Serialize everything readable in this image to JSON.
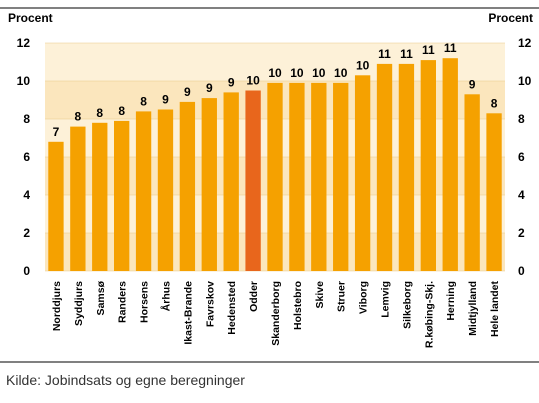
{
  "chart_data": {
    "type": "bar",
    "y_label_left": "Procent",
    "y_label_right": "Procent",
    "categories": [
      "Norddjurs",
      "Syddjurs",
      "Samsø",
      "Randers",
      "Horsens",
      "Århus",
      "Ikast-Brande",
      "Favrskov",
      "Hedensted",
      "Odder",
      "Skanderborg",
      "Holstebro",
      "Skive",
      "Struer",
      "Viborg",
      "Lemvig",
      "Silkeborg",
      "R.købing-Skj.",
      "Herning",
      "Midtjylland",
      "Hele landet"
    ],
    "values": [
      6.8,
      7.6,
      7.8,
      7.9,
      8.4,
      8.5,
      8.9,
      9.1,
      9.4,
      9.5,
      9.9,
      9.9,
      9.9,
      9.9,
      10.3,
      10.9,
      10.9,
      11.1,
      11.2,
      9.3,
      8.3
    ],
    "value_labels": [
      "7",
      "8",
      "8",
      "8",
      "8",
      "9",
      "9",
      "9",
      "9",
      "10",
      "10",
      "10",
      "10",
      "10",
      "10",
      "11",
      "11",
      "11",
      "11",
      "9",
      "8"
    ],
    "colors": [
      "#f5a100",
      "#f5a100",
      "#f5a100",
      "#f5a100",
      "#f5a100",
      "#f5a100",
      "#f5a100",
      "#f5a100",
      "#f5a100",
      "#e8661c",
      "#f5a100",
      "#f5a100",
      "#f5a100",
      "#f5a100",
      "#f5a100",
      "#f5a100",
      "#f5a100",
      "#f5a100",
      "#f5a100",
      "#f5a100",
      "#f5a100"
    ],
    "ylim": [
      0,
      12
    ],
    "yticks": [
      0,
      2,
      4,
      6,
      8,
      10,
      12
    ],
    "y2lim": [
      0,
      12
    ],
    "y2ticks": [
      0,
      2,
      4,
      6,
      8,
      10,
      12
    ],
    "grid": true
  },
  "footer": "Kilde: Jobindsats og egne beregninger"
}
